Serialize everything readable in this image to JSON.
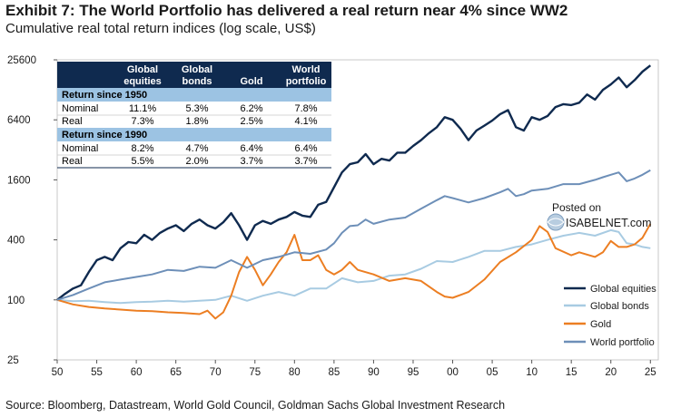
{
  "title": "Exhibit 7: The World Portfolio has delivered a real return near 4% since WW2",
  "subtitle": "Cumulative real total return indices (log scale, US$)",
  "source": "Source: Bloomberg, Datastream, World Gold Council, Goldman Sachs Global Investment Research",
  "watermark": {
    "line1": "Posted on",
    "line2": "ISABELNET.com"
  },
  "colors": {
    "global_equities": "#0f2a4f",
    "global_bonds": "#a8cbe2",
    "gold": "#ec7e22",
    "world_portfolio": "#6d8fb8",
    "table_header": "#0f2a4f",
    "table_section": "#9cc3e3"
  },
  "table": {
    "headers": [
      "Global equities",
      "Global bonds",
      "Gold",
      "World portfolio"
    ],
    "sections": [
      {
        "title": "Return since 1950",
        "rows": [
          {
            "label": "Nominal",
            "values": [
              "11.1%",
              "5.3%",
              "6.2%",
              "7.8%"
            ]
          },
          {
            "label": "Real",
            "values": [
              "7.3%",
              "1.8%",
              "2.5%",
              "4.1%"
            ]
          }
        ]
      },
      {
        "title": "Return since 1990",
        "rows": [
          {
            "label": "Nominal",
            "values": [
              "8.2%",
              "4.7%",
              "6.4%",
              "6.4%"
            ]
          },
          {
            "label": "Real",
            "values": [
              "5.5%",
              "2.0%",
              "3.7%",
              "3.7%"
            ]
          }
        ]
      }
    ]
  },
  "chart_data": {
    "type": "line",
    "yscale": "log",
    "ylim": [
      25,
      25600
    ],
    "xlim": [
      1950,
      2026
    ],
    "y_ticks": [
      25,
      100,
      400,
      1600,
      6400,
      25600
    ],
    "x_ticks": [
      1950,
      1955,
      1960,
      1965,
      1970,
      1975,
      1980,
      1985,
      1990,
      1995,
      2000,
      2005,
      2010,
      2015,
      2020,
      2025
    ],
    "x_tick_labels": [
      "50",
      "55",
      "60",
      "65",
      "70",
      "75",
      "80",
      "85",
      "90",
      "95",
      "00",
      "05",
      "10",
      "15",
      "20",
      "25"
    ],
    "legend_position": "bottom-right",
    "series": [
      {
        "name": "Global equities",
        "color": "#0f2a4f",
        "points": [
          [
            1950,
            100
          ],
          [
            1951,
            115
          ],
          [
            1952,
            130
          ],
          [
            1953,
            140
          ],
          [
            1954,
            190
          ],
          [
            1955,
            250
          ],
          [
            1956,
            270
          ],
          [
            1957,
            250
          ],
          [
            1958,
            330
          ],
          [
            1959,
            380
          ],
          [
            1960,
            370
          ],
          [
            1961,
            450
          ],
          [
            1962,
            400
          ],
          [
            1963,
            470
          ],
          [
            1964,
            520
          ],
          [
            1965,
            560
          ],
          [
            1966,
            490
          ],
          [
            1967,
            580
          ],
          [
            1968,
            640
          ],
          [
            1969,
            560
          ],
          [
            1970,
            520
          ],
          [
            1971,
            600
          ],
          [
            1972,
            740
          ],
          [
            1973,
            560
          ],
          [
            1974,
            400
          ],
          [
            1975,
            560
          ],
          [
            1976,
            620
          ],
          [
            1977,
            580
          ],
          [
            1978,
            640
          ],
          [
            1979,
            680
          ],
          [
            1980,
            760
          ],
          [
            1981,
            700
          ],
          [
            1982,
            680
          ],
          [
            1983,
            900
          ],
          [
            1984,
            960
          ],
          [
            1985,
            1350
          ],
          [
            1986,
            1900
          ],
          [
            1987,
            2300
          ],
          [
            1988,
            2400
          ],
          [
            1989,
            2900
          ],
          [
            1990,
            2300
          ],
          [
            1991,
            2600
          ],
          [
            1992,
            2500
          ],
          [
            1993,
            3000
          ],
          [
            1994,
            3000
          ],
          [
            1995,
            3500
          ],
          [
            1996,
            4000
          ],
          [
            1997,
            4700
          ],
          [
            1998,
            5400
          ],
          [
            1999,
            6800
          ],
          [
            2000,
            6400
          ],
          [
            2001,
            5200
          ],
          [
            2002,
            4000
          ],
          [
            2003,
            5000
          ],
          [
            2004,
            5600
          ],
          [
            2005,
            6300
          ],
          [
            2006,
            7300
          ],
          [
            2007,
            8000
          ],
          [
            2008,
            5400
          ],
          [
            2009,
            5000
          ],
          [
            2010,
            6800
          ],
          [
            2011,
            6400
          ],
          [
            2012,
            7000
          ],
          [
            2013,
            8600
          ],
          [
            2014,
            9200
          ],
          [
            2015,
            9000
          ],
          [
            2016,
            9500
          ],
          [
            2017,
            11500
          ],
          [
            2018,
            10200
          ],
          [
            2019,
            12800
          ],
          [
            2020,
            14500
          ],
          [
            2021,
            17000
          ],
          [
            2022,
            13600
          ],
          [
            2023,
            16000
          ],
          [
            2024,
            19500
          ],
          [
            2025,
            22500
          ]
        ]
      },
      {
        "name": "Global bonds",
        "color": "#a8cbe2",
        "points": [
          [
            1950,
            100
          ],
          [
            1952,
            97
          ],
          [
            1954,
            98
          ],
          [
            1956,
            95
          ],
          [
            1958,
            93
          ],
          [
            1960,
            95
          ],
          [
            1962,
            96
          ],
          [
            1964,
            98
          ],
          [
            1966,
            96
          ],
          [
            1968,
            98
          ],
          [
            1970,
            100
          ],
          [
            1972,
            110
          ],
          [
            1974,
            98
          ],
          [
            1976,
            110
          ],
          [
            1978,
            120
          ],
          [
            1980,
            110
          ],
          [
            1982,
            130
          ],
          [
            1984,
            130
          ],
          [
            1986,
            165
          ],
          [
            1988,
            150
          ],
          [
            1990,
            155
          ],
          [
            1992,
            175
          ],
          [
            1994,
            180
          ],
          [
            1996,
            205
          ],
          [
            1998,
            245
          ],
          [
            2000,
            240
          ],
          [
            2002,
            270
          ],
          [
            2004,
            310
          ],
          [
            2006,
            310
          ],
          [
            2008,
            340
          ],
          [
            2010,
            360
          ],
          [
            2012,
            400
          ],
          [
            2014,
            440
          ],
          [
            2016,
            470
          ],
          [
            2018,
            440
          ],
          [
            2020,
            500
          ],
          [
            2021,
            480
          ],
          [
            2022,
            370
          ],
          [
            2023,
            360
          ],
          [
            2024,
            340
          ],
          [
            2025,
            330
          ]
        ]
      },
      {
        "name": "Gold",
        "color": "#ec7e22",
        "points": [
          [
            1950,
            100
          ],
          [
            1952,
            90
          ],
          [
            1954,
            85
          ],
          [
            1956,
            82
          ],
          [
            1958,
            80
          ],
          [
            1960,
            78
          ],
          [
            1962,
            77
          ],
          [
            1964,
            75
          ],
          [
            1966,
            74
          ],
          [
            1968,
            72
          ],
          [
            1969,
            78
          ],
          [
            1970,
            65
          ],
          [
            1971,
            75
          ],
          [
            1972,
            110
          ],
          [
            1973,
            190
          ],
          [
            1974,
            270
          ],
          [
            1975,
            200
          ],
          [
            1976,
            140
          ],
          [
            1977,
            180
          ],
          [
            1978,
            240
          ],
          [
            1979,
            300
          ],
          [
            1980,
            450
          ],
          [
            1981,
            250
          ],
          [
            1982,
            250
          ],
          [
            1983,
            280
          ],
          [
            1984,
            200
          ],
          [
            1985,
            180
          ],
          [
            1986,
            200
          ],
          [
            1987,
            240
          ],
          [
            1988,
            200
          ],
          [
            1990,
            180
          ],
          [
            1992,
            155
          ],
          [
            1994,
            165
          ],
          [
            1996,
            155
          ],
          [
            1998,
            120
          ],
          [
            1999,
            108
          ],
          [
            2000,
            105
          ],
          [
            2002,
            120
          ],
          [
            2004,
            160
          ],
          [
            2006,
            240
          ],
          [
            2008,
            300
          ],
          [
            2010,
            400
          ],
          [
            2011,
            550
          ],
          [
            2012,
            480
          ],
          [
            2013,
            330
          ],
          [
            2015,
            280
          ],
          [
            2016,
            300
          ],
          [
            2018,
            270
          ],
          [
            2019,
            300
          ],
          [
            2020,
            390
          ],
          [
            2021,
            340
          ],
          [
            2022,
            340
          ],
          [
            2023,
            360
          ],
          [
            2024,
            420
          ],
          [
            2025,
            580
          ]
        ]
      },
      {
        "name": "World portfolio",
        "color": "#6d8fb8",
        "points": [
          [
            1950,
            100
          ],
          [
            1952,
            112
          ],
          [
            1954,
            130
          ],
          [
            1956,
            150
          ],
          [
            1958,
            160
          ],
          [
            1960,
            170
          ],
          [
            1962,
            180
          ],
          [
            1964,
            200
          ],
          [
            1966,
            195
          ],
          [
            1968,
            215
          ],
          [
            1970,
            210
          ],
          [
            1972,
            250
          ],
          [
            1974,
            210
          ],
          [
            1976,
            250
          ],
          [
            1978,
            270
          ],
          [
            1980,
            300
          ],
          [
            1982,
            290
          ],
          [
            1984,
            320
          ],
          [
            1985,
            370
          ],
          [
            1986,
            470
          ],
          [
            1987,
            550
          ],
          [
            1988,
            560
          ],
          [
            1989,
            640
          ],
          [
            1990,
            580
          ],
          [
            1992,
            640
          ],
          [
            1994,
            670
          ],
          [
            1996,
            820
          ],
          [
            1998,
            1000
          ],
          [
            1999,
            1100
          ],
          [
            2000,
            1050
          ],
          [
            2002,
            950
          ],
          [
            2004,
            1050
          ],
          [
            2006,
            1200
          ],
          [
            2007,
            1300
          ],
          [
            2008,
            1100
          ],
          [
            2009,
            1150
          ],
          [
            2010,
            1250
          ],
          [
            2012,
            1300
          ],
          [
            2014,
            1450
          ],
          [
            2016,
            1450
          ],
          [
            2018,
            1600
          ],
          [
            2019,
            1700
          ],
          [
            2020,
            1800
          ],
          [
            2021,
            1900
          ],
          [
            2022,
            1550
          ],
          [
            2023,
            1650
          ],
          [
            2024,
            1800
          ],
          [
            2025,
            2000
          ]
        ]
      }
    ]
  }
}
